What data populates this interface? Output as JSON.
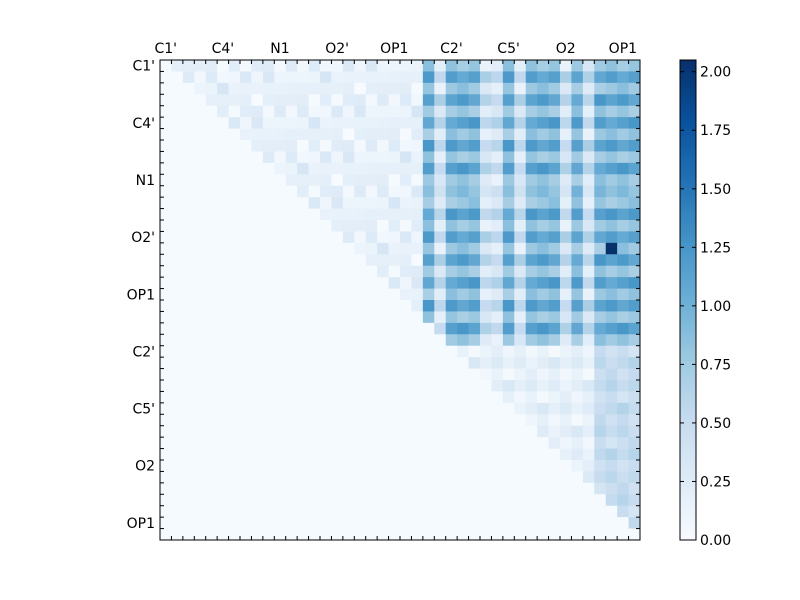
{
  "chart_data": {
    "type": "heatmap",
    "title": "",
    "xlabel": "",
    "ylabel": "",
    "colormap": "Blues",
    "colormap_stops": [
      "#f7fbff",
      "#deebf7",
      "#c6dbef",
      "#9ecae1",
      "#6baed6",
      "#4292c6",
      "#2171b5",
      "#08519c",
      "#08306b"
    ],
    "n_rows": 42,
    "n_cols": 42,
    "labeled_positions": [
      0,
      5,
      10,
      15,
      20,
      25,
      30,
      35,
      40
    ],
    "x_tick_labels": [
      "C1'",
      "C4'",
      "N1",
      "O2'",
      "OP1",
      "C2'",
      "C5'",
      "O2",
      "OP1"
    ],
    "y_tick_labels": [
      "C1'",
      "C4'",
      "N1",
      "O2'",
      "OP1",
      "C2'",
      "C5'",
      "O2",
      "OP1"
    ],
    "colorbar": {
      "range": [
        0.0,
        2.05
      ],
      "tick_values": [
        0.0,
        0.25,
        0.5,
        0.75,
        1.0,
        1.25,
        1.5,
        1.75,
        2.0
      ],
      "tick_labels": [
        "0.00",
        "0.25",
        "0.50",
        "0.75",
        "1.00",
        "1.25",
        "1.50",
        "1.75",
        "2.00"
      ]
    },
    "matrix_shape": "upper-triangular (values above the main diagonal, lower triangle ~0)",
    "strong_columns": [
      23,
      25,
      26,
      27,
      30,
      32,
      33,
      34,
      36,
      38,
      39,
      40,
      41
    ],
    "strong_rows": [
      1,
      3,
      5,
      7,
      9,
      13,
      15,
      17,
      19,
      21,
      23
    ],
    "weak_rows": [
      24,
      26,
      28,
      30,
      32,
      34,
      36,
      38
    ],
    "max_value_cell": {
      "row": 16,
      "col": 39,
      "value": 2.05
    }
  }
}
